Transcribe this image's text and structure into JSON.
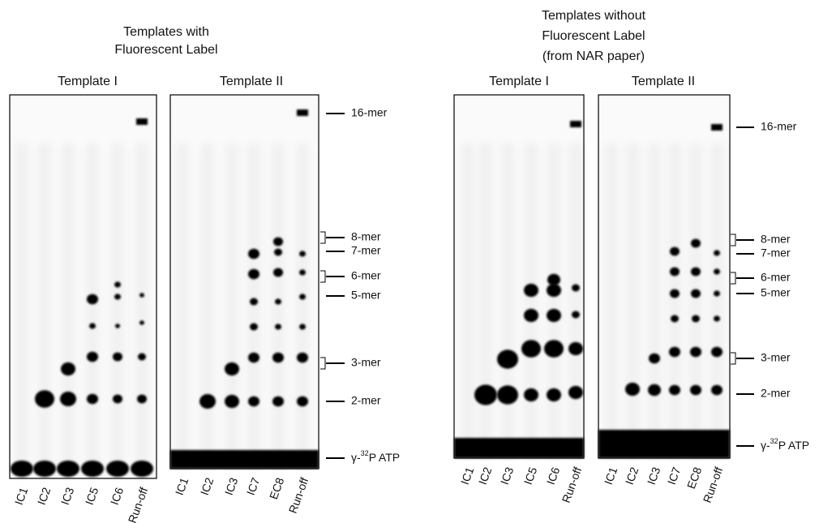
{
  "left": {
    "title": [
      "Templates with",
      "Fluorescent Label"
    ],
    "panels": [
      {
        "title": "Template I",
        "lanes": [
          "IC1",
          "IC2",
          "IC3",
          "IC5",
          "IC6",
          "Run-off"
        ]
      },
      {
        "title": "Template II",
        "lanes": [
          "IC1",
          "IC2",
          "IC3",
          "IC7",
          "EC8",
          "Run-off"
        ]
      }
    ],
    "markers": [
      "16-mer",
      "8-mer",
      "7-mer",
      "6-mer",
      "5-mer",
      "3-mer",
      "2-mer"
    ],
    "atp": [
      "γ-",
      "32",
      "P ATP"
    ]
  },
  "right": {
    "title": [
      "Templates without",
      "Fluorescent Label",
      "(from NAR paper)"
    ],
    "panels": [
      {
        "title": "Template I",
        "lanes": [
          "IC1",
          "IC2",
          "IC3",
          "IC5",
          "IC6",
          "Run-off"
        ]
      },
      {
        "title": "Template II",
        "lanes": [
          "IC1",
          "IC2",
          "IC3",
          "IC7",
          "EC8",
          "Run-off"
        ]
      }
    ],
    "markers": [
      "16-mer",
      "8-mer",
      "7-mer",
      "6-mer",
      "5-mer",
      "3-mer",
      "2-mer"
    ],
    "atp": [
      "γ-",
      "32",
      "P ATP"
    ]
  }
}
